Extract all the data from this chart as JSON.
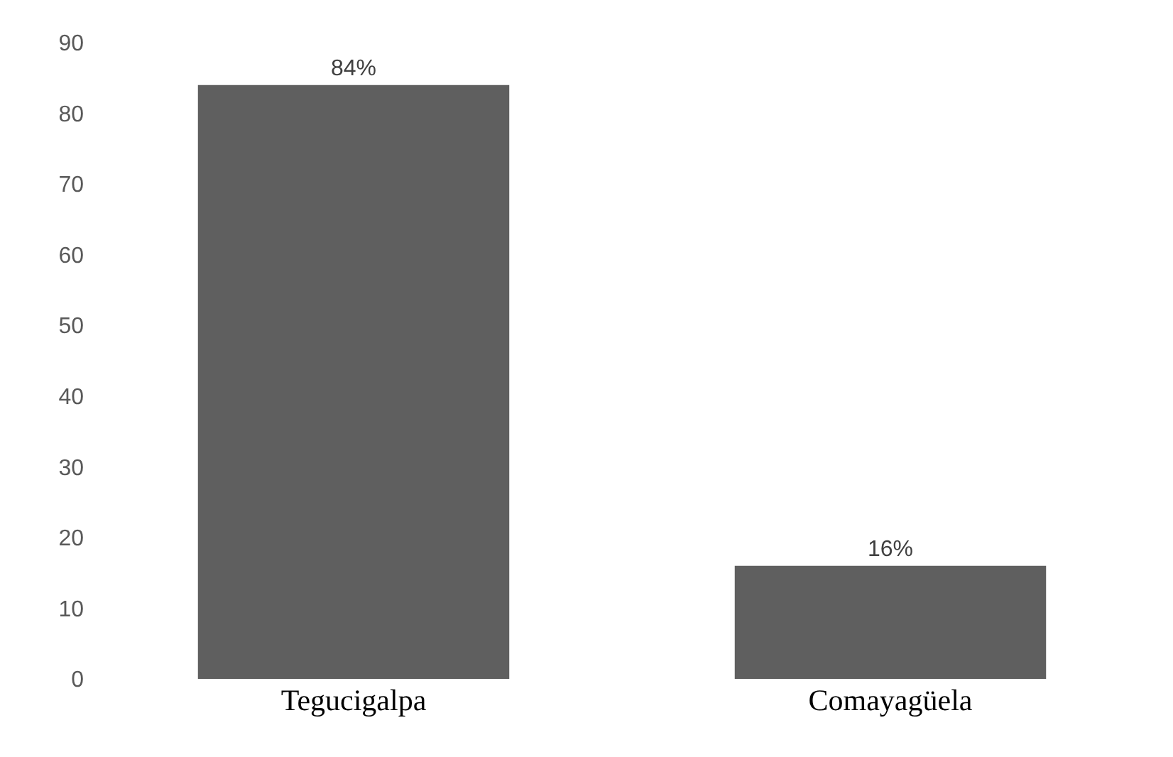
{
  "chart_data": {
    "type": "bar",
    "categories": [
      "Tegucigalpa",
      "Comayagüela"
    ],
    "values": [
      84,
      16
    ],
    "value_labels": [
      "84%",
      "16%"
    ],
    "color": "#5f5f5f",
    "ylim": [
      0,
      90
    ],
    "yticks": [
      0,
      10,
      20,
      30,
      40,
      50,
      60,
      70,
      80,
      90
    ]
  }
}
